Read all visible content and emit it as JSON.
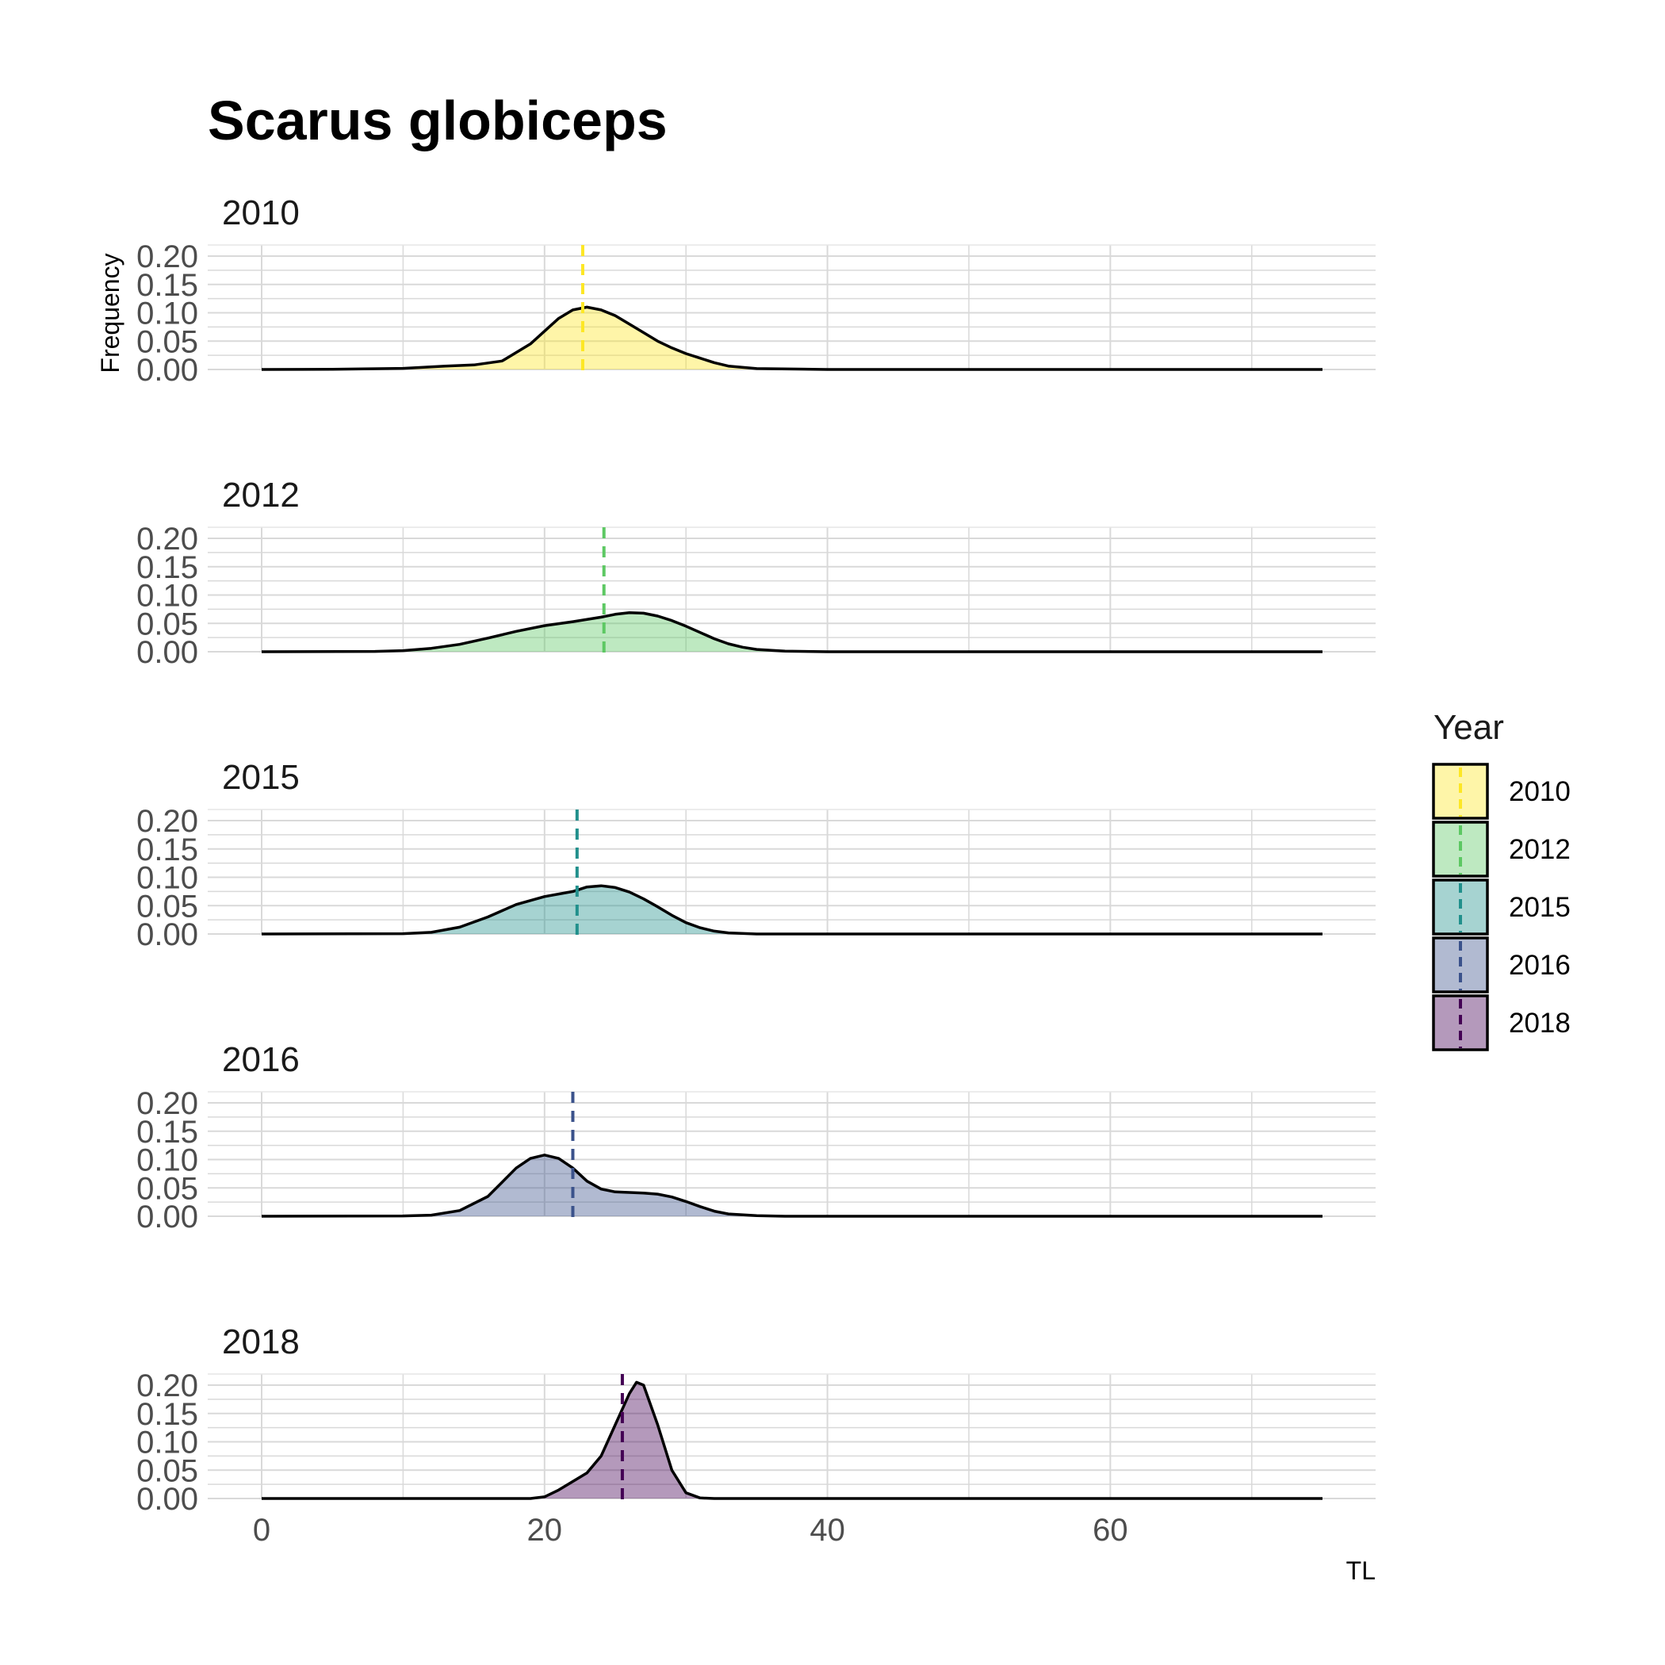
{
  "chart_data": {
    "type": "area",
    "title": "Scarus globiceps",
    "xlabel": "TL",
    "ylabel": "Frequency",
    "xlim": [
      0,
      75
    ],
    "ylim": [
      0,
      0.2
    ],
    "x_ticks": [
      0,
      20,
      40,
      60
    ],
    "y_ticks": [
      "0.00",
      "0.05",
      "0.10",
      "0.15",
      "0.20"
    ],
    "grid": true,
    "legend": {
      "title": "Year",
      "position": "right",
      "items": [
        "2010",
        "2012",
        "2015",
        "2016",
        "2018"
      ]
    },
    "series": [
      {
        "name": "2010",
        "color": "#FDE725",
        "mean_line": 22.7,
        "points": [
          [
            0,
            0
          ],
          [
            5,
            0.0003
          ],
          [
            10,
            0.002
          ],
          [
            13,
            0.006
          ],
          [
            15,
            0.008
          ],
          [
            17,
            0.015
          ],
          [
            19,
            0.045
          ],
          [
            21,
            0.09
          ],
          [
            22,
            0.105
          ],
          [
            23,
            0.11
          ],
          [
            24,
            0.105
          ],
          [
            25,
            0.095
          ],
          [
            26,
            0.08
          ],
          [
            27,
            0.065
          ],
          [
            28,
            0.05
          ],
          [
            29,
            0.038
          ],
          [
            30,
            0.028
          ],
          [
            31,
            0.02
          ],
          [
            32,
            0.012
          ],
          [
            33,
            0.006
          ],
          [
            35,
            0.0015
          ],
          [
            40,
            0
          ],
          [
            75,
            0
          ]
        ]
      },
      {
        "name": "2012",
        "color": "#5DC863",
        "mean_line": 24.2,
        "points": [
          [
            0,
            0
          ],
          [
            8,
            0.0005
          ],
          [
            10,
            0.002
          ],
          [
            12,
            0.006
          ],
          [
            14,
            0.013
          ],
          [
            16,
            0.024
          ],
          [
            18,
            0.036
          ],
          [
            20,
            0.046
          ],
          [
            22,
            0.053
          ],
          [
            24,
            0.061
          ],
          [
            25,
            0.066
          ],
          [
            26,
            0.069
          ],
          [
            27,
            0.068
          ],
          [
            28,
            0.063
          ],
          [
            29,
            0.055
          ],
          [
            30,
            0.045
          ],
          [
            31,
            0.034
          ],
          [
            32,
            0.023
          ],
          [
            33,
            0.014
          ],
          [
            34,
            0.008
          ],
          [
            35,
            0.004
          ],
          [
            37,
            0.001
          ],
          [
            40,
            0
          ],
          [
            75,
            0
          ]
        ]
      },
      {
        "name": "2015",
        "color": "#21908C",
        "mean_line": 22.3,
        "points": [
          [
            0,
            0
          ],
          [
            10,
            0.0005
          ],
          [
            12,
            0.003
          ],
          [
            14,
            0.012
          ],
          [
            16,
            0.03
          ],
          [
            18,
            0.052
          ],
          [
            20,
            0.066
          ],
          [
            22,
            0.075
          ],
          [
            23,
            0.083
          ],
          [
            24,
            0.085
          ],
          [
            25,
            0.082
          ],
          [
            26,
            0.074
          ],
          [
            27,
            0.062
          ],
          [
            28,
            0.048
          ],
          [
            29,
            0.033
          ],
          [
            30,
            0.02
          ],
          [
            31,
            0.011
          ],
          [
            32,
            0.005
          ],
          [
            33,
            0.002
          ],
          [
            35,
            0
          ],
          [
            75,
            0
          ]
        ]
      },
      {
        "name": "2016",
        "color": "#3B528B",
        "mean_line": 22.0,
        "points": [
          [
            0,
            0
          ],
          [
            10,
            0.0005
          ],
          [
            12,
            0.002
          ],
          [
            14,
            0.01
          ],
          [
            16,
            0.035
          ],
          [
            17,
            0.06
          ],
          [
            18,
            0.085
          ],
          [
            19,
            0.102
          ],
          [
            20,
            0.108
          ],
          [
            21,
            0.102
          ],
          [
            22,
            0.085
          ],
          [
            23,
            0.062
          ],
          [
            24,
            0.048
          ],
          [
            25,
            0.043
          ],
          [
            26,
            0.042
          ],
          [
            27,
            0.041
          ],
          [
            28,
            0.039
          ],
          [
            29,
            0.034
          ],
          [
            30,
            0.026
          ],
          [
            31,
            0.017
          ],
          [
            32,
            0.009
          ],
          [
            33,
            0.004
          ],
          [
            35,
            0.001
          ],
          [
            37,
            0
          ],
          [
            75,
            0
          ]
        ]
      },
      {
        "name": "2018",
        "color": "#440154",
        "mean_line": 25.5,
        "points": [
          [
            0,
            0
          ],
          [
            19,
            0
          ],
          [
            20,
            0.003
          ],
          [
            21,
            0.015
          ],
          [
            22,
            0.03
          ],
          [
            23,
            0.045
          ],
          [
            24,
            0.075
          ],
          [
            25,
            0.13
          ],
          [
            26,
            0.185
          ],
          [
            26.5,
            0.205
          ],
          [
            27,
            0.2
          ],
          [
            28,
            0.13
          ],
          [
            29,
            0.05
          ],
          [
            30,
            0.01
          ],
          [
            31,
            0.001
          ],
          [
            32,
            0
          ],
          [
            75,
            0
          ]
        ]
      }
    ]
  }
}
